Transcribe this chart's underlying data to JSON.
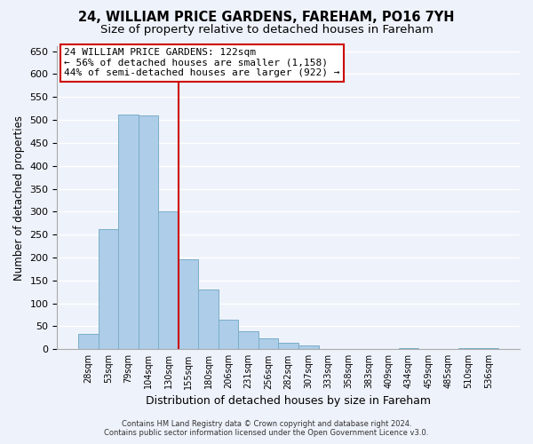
{
  "title": "24, WILLIAM PRICE GARDENS, FAREHAM, PO16 7YH",
  "subtitle": "Size of property relative to detached houses in Fareham",
  "xlabel": "Distribution of detached houses by size in Fareham",
  "ylabel": "Number of detached properties",
  "bar_labels": [
    "28sqm",
    "53sqm",
    "79sqm",
    "104sqm",
    "130sqm",
    "155sqm",
    "180sqm",
    "206sqm",
    "231sqm",
    "256sqm",
    "282sqm",
    "307sqm",
    "333sqm",
    "358sqm",
    "383sqm",
    "409sqm",
    "434sqm",
    "459sqm",
    "485sqm",
    "510sqm",
    "536sqm"
  ],
  "bar_values": [
    33,
    263,
    512,
    510,
    301,
    196,
    131,
    65,
    40,
    24,
    15,
    8,
    0,
    0,
    0,
    0,
    3,
    0,
    0,
    2,
    2
  ],
  "bar_color": "#aecde8",
  "bar_edgecolor": "#7aaec8",
  "vline_x": 4,
  "vline_color": "#cc0000",
  "annotation_line1": "24 WILLIAM PRICE GARDENS: 122sqm",
  "annotation_line2": "← 56% of detached houses are smaller (1,158)",
  "annotation_line3": "44% of semi-detached houses are larger (922) →",
  "annotation_box_color": "#ffffff",
  "annotation_box_edgecolor": "#cc0000",
  "ylim": [
    0,
    660
  ],
  "yticks": [
    0,
    50,
    100,
    150,
    200,
    250,
    300,
    350,
    400,
    450,
    500,
    550,
    600,
    650
  ],
  "footer_line1": "Contains HM Land Registry data © Crown copyright and database right 2024.",
  "footer_line2": "Contains public sector information licensed under the Open Government Licence v3.0.",
  "background_color": "#eef2fb",
  "grid_color": "#ffffff"
}
